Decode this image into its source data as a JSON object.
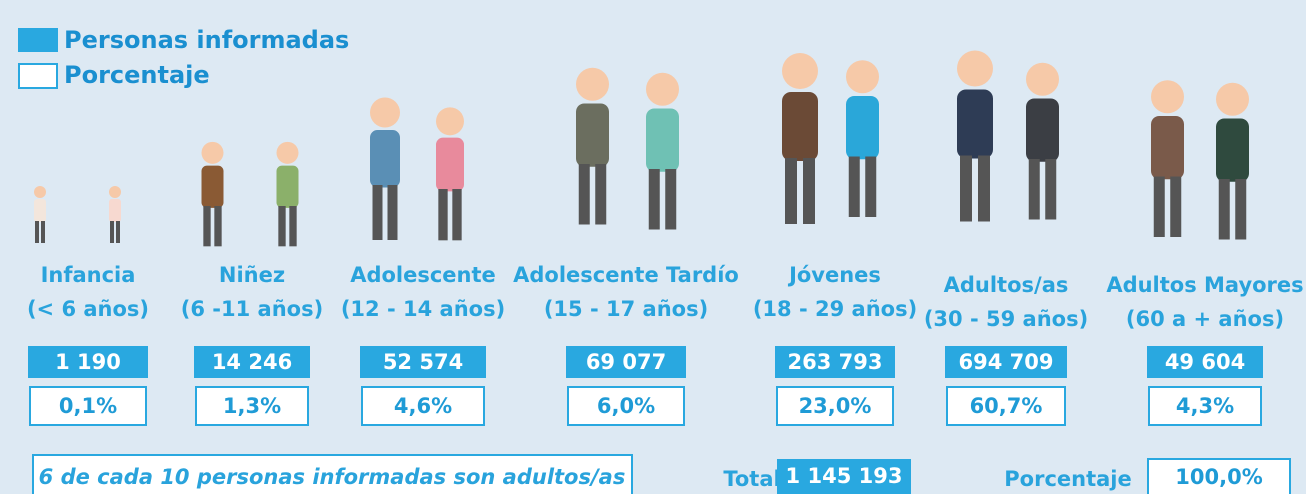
{
  "legend": [
    "Personas informadas",
    "Porcentaje"
  ],
  "groups": [
    {
      "name": "Infancia",
      "range": "(< 6 años)",
      "count": "1 190",
      "percent": "0,1%"
    },
    {
      "name": "Niñez",
      "range": "(6 -11 años)",
      "count": "14 246",
      "percent": "1,3%"
    },
    {
      "name": "Adolescente",
      "range": "(12 - 14 años)",
      "count": "52 574",
      "percent": "4,6%"
    },
    {
      "name": "Adolescente Tardío",
      "range": "(15 - 17 años)",
      "count": "69 077",
      "percent": "6,0%"
    },
    {
      "name": "Jóvenes",
      "range": "(18 - 29 años)",
      "count": "263 793",
      "percent": "23,0%"
    },
    {
      "name": "Adultos/as",
      "range": "(30 - 59 años)",
      "count": "694 709",
      "percent": "60,7%"
    },
    {
      "name": "Adultos Mayores",
      "range": "(60 a + años)",
      "count": "49 604",
      "percent": "4,3%"
    }
  ],
  "note": "6 de cada 10 personas informadas son adultos/as",
  "total": {
    "label": "Total",
    "value": "1 145 193"
  },
  "percent_total": {
    "label": "Porcentaje",
    "value": "100,0%"
  }
}
